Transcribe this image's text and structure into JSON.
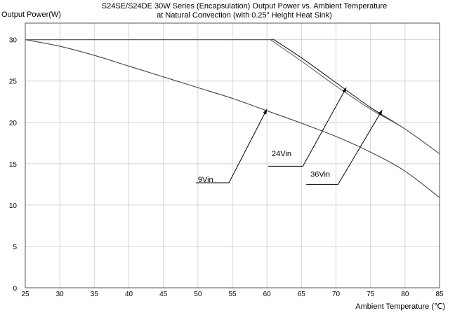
{
  "chart_data": {
    "type": "line",
    "title_line1": "S24SE/S24DE  30W Series (Encapsulation)  Output Power vs. Ambient Temperature",
    "title_line2": "at Natural Convection (with 0.25\" Height Heat Sink)",
    "ylabel": "Output Power(W)",
    "xlabel": "Ambient Temperature (℃)",
    "xlim": [
      25,
      85
    ],
    "ylim": [
      0,
      32
    ],
    "xticks": [
      25,
      30,
      35,
      40,
      45,
      50,
      55,
      60,
      65,
      70,
      75,
      80,
      85
    ],
    "yticks": [
      0,
      5,
      10,
      15,
      20,
      25,
      30
    ],
    "grid": true,
    "series": [
      {
        "name": "9Vin",
        "color": "#444444",
        "x": [
          25,
          30,
          35,
          40,
          45,
          50,
          55,
          60,
          65,
          70,
          75,
          80,
          85
        ],
        "y": [
          30,
          29.2,
          28.1,
          26.8,
          25.5,
          24.2,
          22.9,
          21.4,
          19.9,
          18.3,
          16.4,
          14.1,
          10.9
        ]
      },
      {
        "name": "24Vin",
        "color": "#222222",
        "x": [
          25,
          61,
          65,
          70,
          75,
          80,
          85
        ],
        "y": [
          30,
          30,
          27.8,
          24.8,
          21.8,
          19.2,
          16.2
        ]
      },
      {
        "name": "36Vin",
        "color": "#666666",
        "x": [
          25,
          60.5,
          65,
          70,
          75,
          80,
          85
        ],
        "y": [
          30,
          30,
          27.4,
          24.4,
          21.6,
          19.2,
          16.2
        ]
      }
    ],
    "annotations": [
      {
        "label": "9Vin",
        "text_x": 50,
        "text_y": 12.8,
        "line": [
          [
            49.7,
            12.7
          ],
          [
            54.5,
            12.7
          ],
          [
            60,
            21.6
          ]
        ]
      },
      {
        "label": "24Vin",
        "text_x": 60.7,
        "text_y": 15.9,
        "line": [
          [
            60.2,
            14.7
          ],
          [
            65.2,
            14.7
          ],
          [
            71.5,
            24.2
          ]
        ]
      },
      {
        "label": "36Vin",
        "text_x": 66.3,
        "text_y": 13.4,
        "line": [
          [
            65.7,
            12.5
          ],
          [
            70.3,
            12.5
          ],
          [
            76.7,
            21.5
          ]
        ]
      }
    ]
  }
}
